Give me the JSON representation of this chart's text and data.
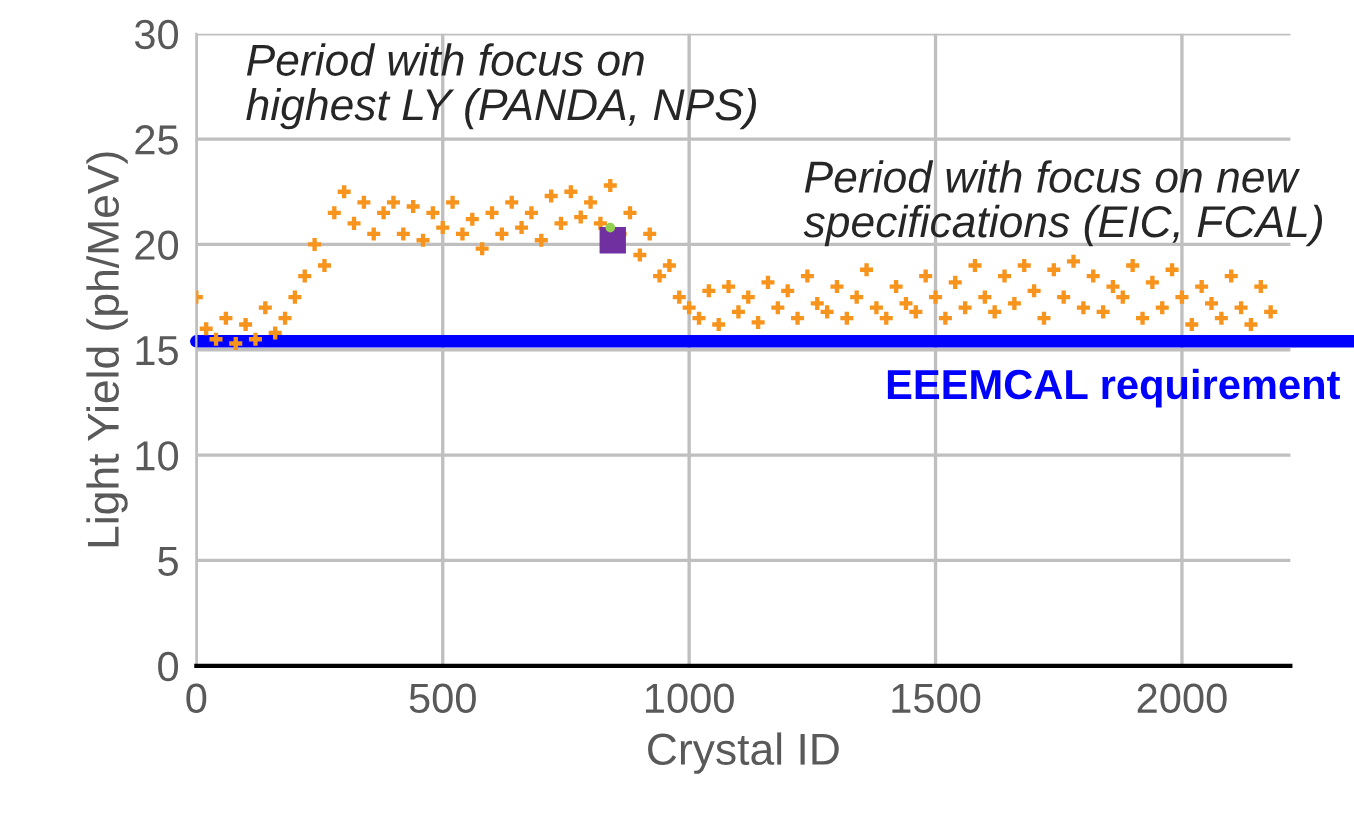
{
  "chart_data": {
    "type": "scatter",
    "xlabel": "Crystal ID",
    "ylabel": "Light Yield (ph/MeV)",
    "xlim": [
      0,
      2220
    ],
    "ylim": [
      0,
      30
    ],
    "xticks": [
      0,
      500,
      1000,
      1500,
      2000
    ],
    "yticks": [
      0,
      5,
      10,
      15,
      20,
      25,
      30
    ],
    "grid": true,
    "marker": "cross",
    "series": [
      {
        "color": "#f7941d",
        "x": [
          0,
          20,
          40,
          60,
          80,
          100,
          120,
          140,
          160,
          180,
          200,
          220,
          240,
          260,
          280,
          300,
          320,
          340,
          360,
          380,
          400,
          420,
          440,
          460,
          480,
          500,
          520,
          540,
          560,
          580,
          600,
          620,
          640,
          660,
          680,
          700,
          720,
          740,
          760,
          780,
          800,
          820,
          840,
          860,
          880,
          900,
          920,
          940,
          960,
          980,
          1000,
          1020,
          1040,
          1060,
          1080,
          1100,
          1120,
          1140,
          1160,
          1180,
          1200,
          1220,
          1240,
          1260,
          1280,
          1300,
          1320,
          1340,
          1360,
          1380,
          1400,
          1420,
          1440,
          1460,
          1480,
          1500,
          1520,
          1540,
          1560,
          1580,
          1600,
          1620,
          1640,
          1660,
          1680,
          1700,
          1720,
          1740,
          1760,
          1780,
          1800,
          1820,
          1840,
          1860,
          1880,
          1900,
          1920,
          1940,
          1960,
          1980,
          2000,
          2020,
          2040,
          2060,
          2080,
          2100,
          2120,
          2140,
          2160,
          2180
        ],
        "values": [
          17.5,
          16.0,
          15.5,
          16.5,
          15.3,
          16.2,
          15.5,
          17.0,
          15.8,
          16.5,
          17.5,
          18.5,
          20.0,
          19.0,
          21.5,
          22.5,
          21.0,
          22.0,
          20.5,
          21.5,
          22.0,
          20.5,
          21.8,
          20.2,
          21.5,
          20.8,
          22.0,
          20.5,
          21.2,
          19.8,
          21.5,
          20.5,
          22.0,
          20.8,
          21.5,
          20.2,
          22.3,
          21.0,
          22.5,
          21.3,
          22.0,
          21.0,
          22.8,
          20.5,
          21.5,
          19.5,
          20.5,
          18.5,
          19.0,
          17.5,
          17.0,
          16.5,
          17.8,
          16.2,
          18.0,
          16.8,
          17.5,
          16.3,
          18.2,
          17.0,
          17.8,
          16.5,
          18.5,
          17.2,
          16.8,
          18.0,
          16.5,
          17.5,
          18.8,
          17.0,
          16.5,
          18.0,
          17.2,
          16.8,
          18.5,
          17.5,
          16.5,
          18.2,
          17.0,
          19.0,
          17.5,
          16.8,
          18.5,
          17.2,
          19.0,
          17.8,
          16.5,
          18.8,
          17.5,
          19.2,
          17.0,
          18.5,
          16.8,
          18.0,
          17.5,
          19.0,
          16.5,
          18.2,
          17.0,
          18.8,
          17.5,
          16.2,
          18.0,
          17.2,
          16.5,
          18.5,
          17.0,
          16.2,
          18.0,
          16.8
        ]
      },
      {
        "color": "#7030a0",
        "marker": "square",
        "x": [
          845
        ],
        "values": [
          20.2
        ]
      },
      {
        "color": "#92d050",
        "marker": "circle",
        "x": [
          840
        ],
        "values": [
          20.8
        ]
      }
    ],
    "ref_lines": [
      {
        "axis": "y",
        "value": 15.4,
        "label": "EEEMCAL requirement",
        "color": "#0000ff"
      }
    ],
    "annotations": [
      "Period with focus on highest LY (PANDA, NPS)",
      "Period with focus on new specifications (EIC, FCAL)"
    ]
  }
}
